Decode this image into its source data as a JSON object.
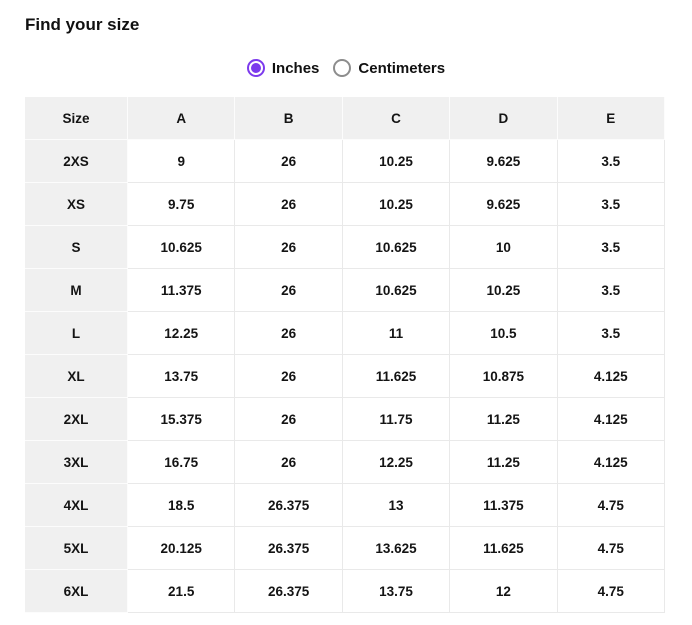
{
  "page": {
    "title": "Find your size"
  },
  "units": {
    "options": [
      {
        "label": "Inches",
        "selected": true
      },
      {
        "label": "Centimeters",
        "selected": false
      }
    ]
  },
  "colors": {
    "accent": "#7c3aed",
    "header_bg": "#f0f0f0",
    "cell_border": "#e9e9e9"
  },
  "table": {
    "columns": [
      "Size",
      "A",
      "B",
      "C",
      "D",
      "E"
    ],
    "rows": [
      {
        "size": "2XS",
        "values": [
          "9",
          "26",
          "10.25",
          "9.625",
          "3.5"
        ]
      },
      {
        "size": "XS",
        "values": [
          "9.75",
          "26",
          "10.25",
          "9.625",
          "3.5"
        ]
      },
      {
        "size": "S",
        "values": [
          "10.625",
          "26",
          "10.625",
          "10",
          "3.5"
        ]
      },
      {
        "size": "M",
        "values": [
          "11.375",
          "26",
          "10.625",
          "10.25",
          "3.5"
        ]
      },
      {
        "size": "L",
        "values": [
          "12.25",
          "26",
          "11",
          "10.5",
          "3.5"
        ]
      },
      {
        "size": "XL",
        "values": [
          "13.75",
          "26",
          "11.625",
          "10.875",
          "4.125"
        ]
      },
      {
        "size": "2XL",
        "values": [
          "15.375",
          "26",
          "11.75",
          "11.25",
          "4.125"
        ]
      },
      {
        "size": "3XL",
        "values": [
          "16.75",
          "26",
          "12.25",
          "11.25",
          "4.125"
        ]
      },
      {
        "size": "4XL",
        "values": [
          "18.5",
          "26.375",
          "13",
          "11.375",
          "4.75"
        ]
      },
      {
        "size": "5XL",
        "values": [
          "20.125",
          "26.375",
          "13.625",
          "11.625",
          "4.75"
        ]
      },
      {
        "size": "6XL",
        "values": [
          "21.5",
          "26.375",
          "13.75",
          "12",
          "4.75"
        ]
      }
    ]
  }
}
